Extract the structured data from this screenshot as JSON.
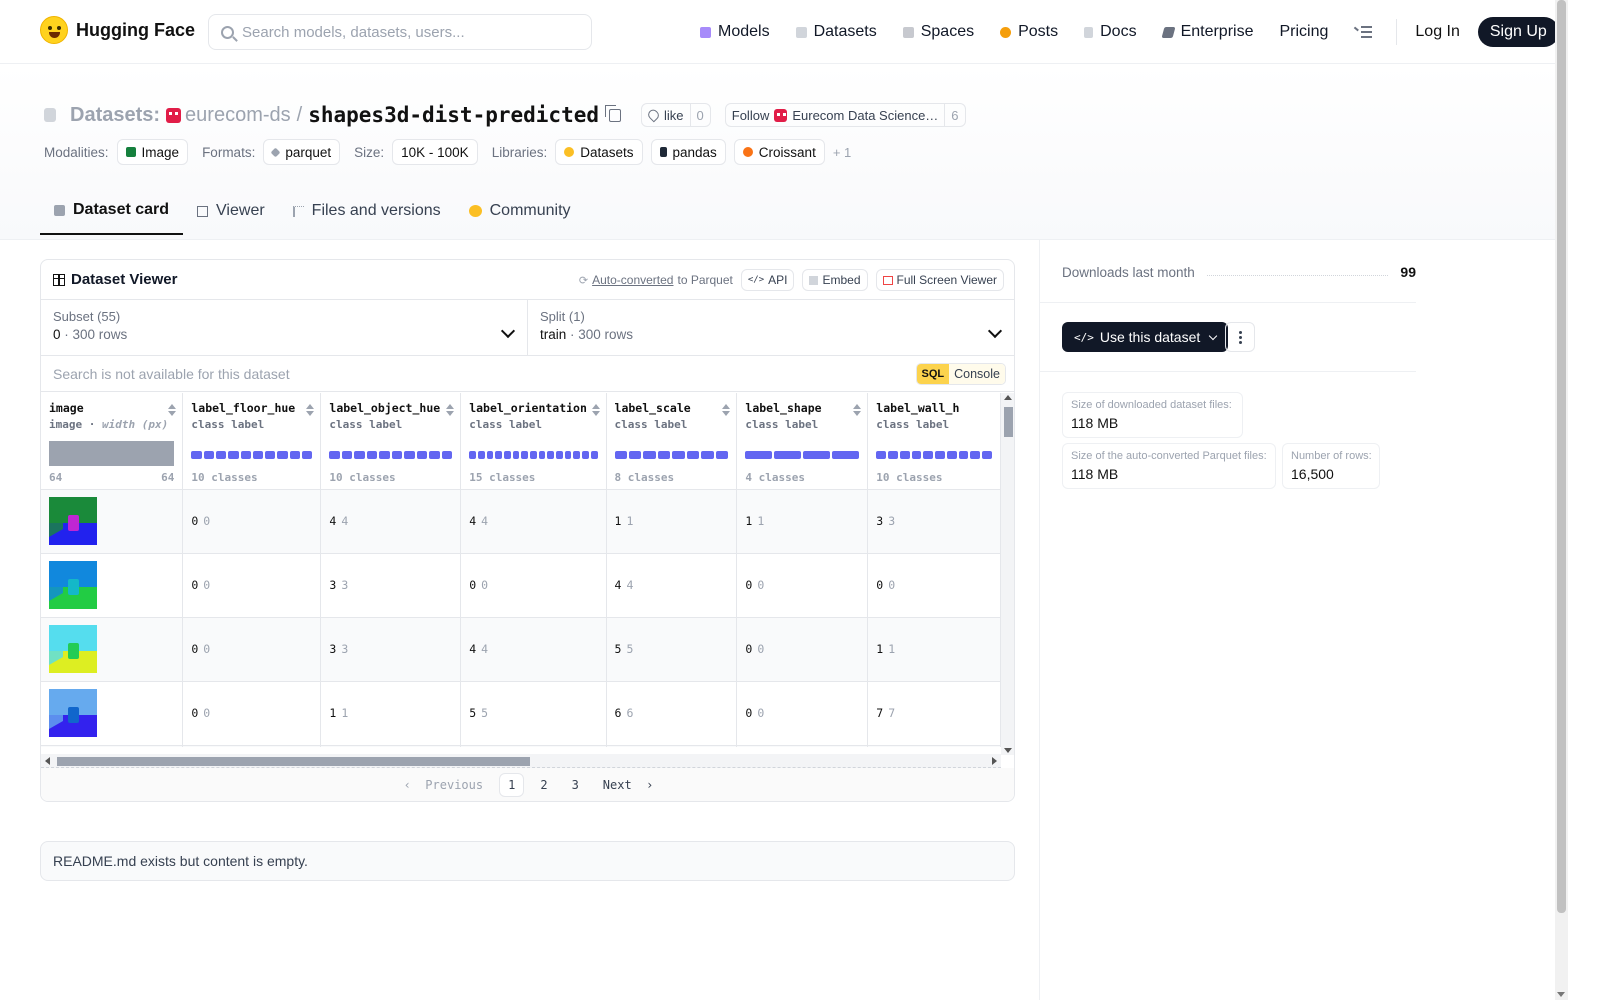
{
  "nav": {
    "brand": "Hugging Face",
    "search_placeholder": "Search models, datasets, users...",
    "links": [
      {
        "label": "Models",
        "icon": "cube-icon",
        "color": "#a78bfa"
      },
      {
        "label": "Datasets",
        "icon": "database-icon",
        "color": "#9ca3af"
      },
      {
        "label": "Spaces",
        "icon": "spaces-icon",
        "color": "#9ca3af"
      },
      {
        "label": "Posts",
        "icon": "posts-icon",
        "color": "#f59e0b"
      },
      {
        "label": "Docs",
        "icon": "docs-icon",
        "color": "#9ca3af"
      },
      {
        "label": "Enterprise",
        "icon": "enterprise-icon",
        "color": "#6b7280"
      },
      {
        "label": "Pricing"
      }
    ],
    "login": "Log In",
    "signup": "Sign Up"
  },
  "header": {
    "prefix": "Datasets:",
    "org": "eurecom-ds",
    "slash": "/",
    "name": "shapes3d-dist-predicted",
    "like_label": "like",
    "like_count": "0",
    "follow_label": "Follow",
    "follow_org": "Eurecom Data Science…",
    "follow_count": "6",
    "modalities_label": "Modalities:",
    "modality": "Image",
    "formats_label": "Formats:",
    "format": "parquet",
    "size_label": "Size:",
    "size": "10K - 100K",
    "libraries_label": "Libraries:",
    "libraries": [
      "Datasets",
      "pandas",
      "Croissant"
    ],
    "libraries_more": "+ 1",
    "tabs": [
      {
        "label": "Dataset card",
        "active": true
      },
      {
        "label": "Viewer"
      },
      {
        "label": "Files and versions"
      },
      {
        "label": "Community"
      }
    ]
  },
  "viewer": {
    "title": "Dataset Viewer",
    "auto_converted": "Auto-converted",
    "to_parquet": "to Parquet",
    "api": "API",
    "embed": "Embed",
    "full_screen": "Full Screen Viewer",
    "subset_label": "Subset (55)",
    "subset_value": "0",
    "subset_rows": "300 rows",
    "split_label": "Split (1)",
    "split_value": "train",
    "split_rows": "300 rows",
    "search_placeholder": "Search is not available for this dataset",
    "sql": "SQL",
    "console": "Console",
    "columns": [
      {
        "name": "image",
        "type": "image",
        "type_extra": "width (px)",
        "min": "64",
        "max": "64"
      },
      {
        "name": "label_floor_hue",
        "type": "class label",
        "classes": "10 classes",
        "segments": 10
      },
      {
        "name": "label_object_hue",
        "type": "class label",
        "classes": "10 classes",
        "segments": 10
      },
      {
        "name": "label_orientation",
        "type": "class label",
        "classes": "15 classes",
        "segments": 15
      },
      {
        "name": "label_scale",
        "type": "class label",
        "classes": "8 classes",
        "segments": 8
      },
      {
        "name": "label_shape",
        "type": "class label",
        "classes": "4 classes",
        "segments": 4
      },
      {
        "name": "label_wall_h",
        "type": "class label",
        "classes": "10 classes",
        "segments": 10
      }
    ],
    "rows": [
      {
        "thumb": {
          "wall": "#1a8a3a",
          "floor": "#2222ee",
          "obj": "#c026d3"
        },
        "cells": [
          "0",
          "4",
          "4",
          "1",
          "1",
          "3"
        ]
      },
      {
        "thumb": {
          "wall": "#1188dd",
          "floor": "#22cc44",
          "obj": "#14b8c8"
        },
        "cells": [
          "0",
          "3",
          "0",
          "4",
          "0",
          "0"
        ]
      },
      {
        "thumb": {
          "wall": "#55ddee",
          "floor": "#ddee22",
          "obj": "#22cc55"
        },
        "cells": [
          "0",
          "3",
          "4",
          "5",
          "0",
          "1"
        ]
      },
      {
        "thumb": {
          "wall": "#66aaee",
          "floor": "#3322ee",
          "obj": "#1166cc"
        },
        "cells": [
          "0",
          "1",
          "5",
          "6",
          "0",
          "7"
        ]
      }
    ],
    "pager": {
      "prev": "Previous",
      "pages": [
        "1",
        "2",
        "3"
      ],
      "next": "Next"
    }
  },
  "readme": "README.md exists but content is empty.",
  "sidebar": {
    "downloads_label": "Downloads last month",
    "downloads": "99",
    "use_dataset": "Use this dataset",
    "stats": [
      {
        "label": "Size of downloaded dataset files:",
        "value": "118 MB"
      },
      {
        "label": "Size of the auto-converted Parquet files:",
        "value": "118 MB"
      },
      {
        "label": "Number of rows:",
        "value": "16,500"
      }
    ]
  }
}
